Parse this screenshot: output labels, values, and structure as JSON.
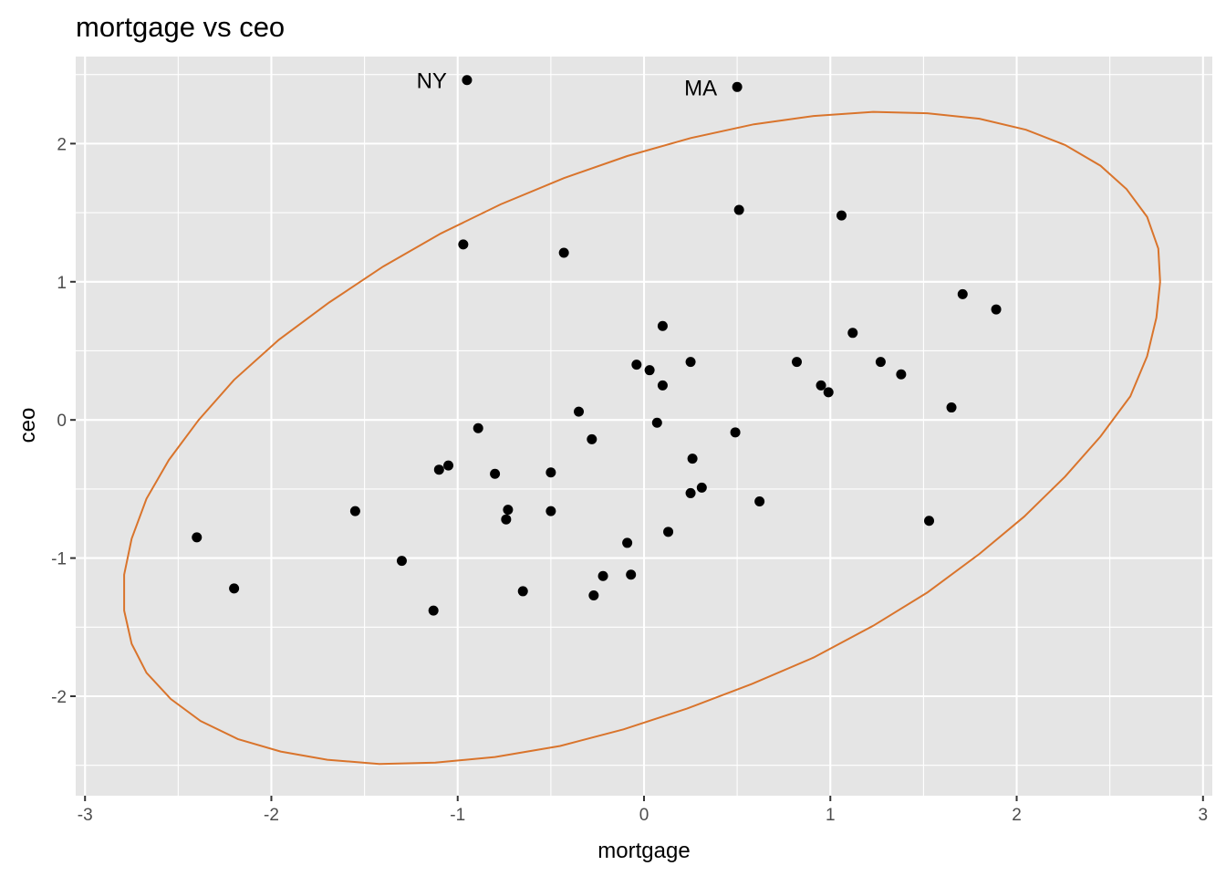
{
  "chart_data": {
    "type": "scatter",
    "title": "mortgage vs ceo",
    "xlabel": "mortgage",
    "ylabel": "ceo",
    "xlim": [
      -3.05,
      3.05
    ],
    "ylim": [
      -2.72,
      2.63
    ],
    "x_ticks": [
      -3,
      -2,
      -1,
      0,
      1,
      2,
      3
    ],
    "x_tick_labels": [
      "-3",
      "-2",
      "-1",
      "0",
      "1",
      "2",
      "3"
    ],
    "y_ticks": [
      -2,
      -1,
      0,
      1,
      2
    ],
    "y_tick_labels": [
      "-2",
      "-1",
      "0",
      "1",
      "2"
    ],
    "grid": true,
    "colors": {
      "panel": "#e5e5e5",
      "grid": "#ffffff",
      "points": "#000000",
      "ellipse": "#d9742c"
    },
    "points": [
      {
        "x": -0.95,
        "y": 2.46,
        "label": "NY"
      },
      {
        "x": 0.5,
        "y": 2.41,
        "label": "MA"
      },
      {
        "x": 0.51,
        "y": 1.52
      },
      {
        "x": 1.06,
        "y": 1.48
      },
      {
        "x": -0.97,
        "y": 1.27
      },
      {
        "x": -0.43,
        "y": 1.21
      },
      {
        "x": 1.71,
        "y": 0.91
      },
      {
        "x": 1.89,
        "y": 0.8
      },
      {
        "x": 0.1,
        "y": 0.68
      },
      {
        "x": 1.12,
        "y": 0.63
      },
      {
        "x": 0.25,
        "y": 0.42
      },
      {
        "x": 0.82,
        "y": 0.42
      },
      {
        "x": 1.27,
        "y": 0.42
      },
      {
        "x": -0.04,
        "y": 0.4
      },
      {
        "x": 0.03,
        "y": 0.36
      },
      {
        "x": 1.38,
        "y": 0.33
      },
      {
        "x": 0.1,
        "y": 0.25
      },
      {
        "x": 0.95,
        "y": 0.25
      },
      {
        "x": 0.99,
        "y": 0.2
      },
      {
        "x": 1.65,
        "y": 0.09
      },
      {
        "x": -0.35,
        "y": 0.06
      },
      {
        "x": 0.07,
        "y": -0.02
      },
      {
        "x": -0.89,
        "y": -0.06
      },
      {
        "x": 0.49,
        "y": -0.09
      },
      {
        "x": -0.28,
        "y": -0.14
      },
      {
        "x": 0.26,
        "y": -0.28
      },
      {
        "x": -1.05,
        "y": -0.33
      },
      {
        "x": -1.1,
        "y": -0.36
      },
      {
        "x": -0.5,
        "y": -0.38
      },
      {
        "x": -0.8,
        "y": -0.39
      },
      {
        "x": 0.31,
        "y": -0.49
      },
      {
        "x": 0.25,
        "y": -0.53
      },
      {
        "x": 0.62,
        "y": -0.59
      },
      {
        "x": -1.55,
        "y": -0.66
      },
      {
        "x": -0.73,
        "y": -0.65
      },
      {
        "x": -0.5,
        "y": -0.66
      },
      {
        "x": -0.74,
        "y": -0.72
      },
      {
        "x": 1.53,
        "y": -0.73
      },
      {
        "x": 0.13,
        "y": -0.81
      },
      {
        "x": -2.4,
        "y": -0.85
      },
      {
        "x": -0.09,
        "y": -0.89
      },
      {
        "x": -1.3,
        "y": -1.02
      },
      {
        "x": -0.07,
        "y": -1.12
      },
      {
        "x": -0.22,
        "y": -1.13
      },
      {
        "x": -2.2,
        "y": -1.22
      },
      {
        "x": -0.65,
        "y": -1.24
      },
      {
        "x": -0.27,
        "y": -1.27
      },
      {
        "x": -1.13,
        "y": -1.38
      }
    ],
    "ellipse": [
      [
        2.77,
        1.0
      ],
      [
        2.75,
        0.74
      ],
      [
        2.7,
        0.46
      ],
      [
        2.61,
        0.17
      ],
      [
        2.45,
        -0.12
      ],
      [
        2.26,
        -0.41
      ],
      [
        2.04,
        -0.7
      ],
      [
        1.8,
        -0.97
      ],
      [
        1.52,
        -1.25
      ],
      [
        1.23,
        -1.49
      ],
      [
        0.91,
        -1.72
      ],
      [
        0.58,
        -1.91
      ],
      [
        0.23,
        -2.09
      ],
      [
        -0.11,
        -2.24
      ],
      [
        -0.45,
        -2.36
      ],
      [
        -0.8,
        -2.44
      ],
      [
        -1.12,
        -2.48
      ],
      [
        -1.42,
        -2.49
      ],
      [
        -1.7,
        -2.46
      ],
      [
        -1.95,
        -2.4
      ],
      [
        -2.18,
        -2.31
      ],
      [
        -2.38,
        -2.18
      ],
      [
        -2.54,
        -2.02
      ],
      [
        -2.67,
        -1.83
      ],
      [
        -2.75,
        -1.62
      ],
      [
        -2.79,
        -1.38
      ],
      [
        -2.79,
        -1.12
      ],
      [
        -2.75,
        -0.86
      ],
      [
        -2.67,
        -0.57
      ],
      [
        -2.55,
        -0.29
      ],
      [
        -2.39,
        0.0
      ],
      [
        -2.2,
        0.29
      ],
      [
        -1.96,
        0.58
      ],
      [
        -1.69,
        0.85
      ],
      [
        -1.4,
        1.11
      ],
      [
        -1.09,
        1.35
      ],
      [
        -0.77,
        1.56
      ],
      [
        -0.43,
        1.75
      ],
      [
        -0.09,
        1.91
      ],
      [
        0.25,
        2.04
      ],
      [
        0.59,
        2.14
      ],
      [
        0.91,
        2.2
      ],
      [
        1.23,
        2.23
      ],
      [
        1.52,
        2.22
      ],
      [
        1.8,
        2.18
      ],
      [
        2.05,
        2.1
      ],
      [
        2.26,
        1.99
      ],
      [
        2.45,
        1.84
      ],
      [
        2.59,
        1.67
      ],
      [
        2.7,
        1.47
      ],
      [
        2.76,
        1.24
      ],
      [
        2.77,
        1.0
      ]
    ]
  }
}
